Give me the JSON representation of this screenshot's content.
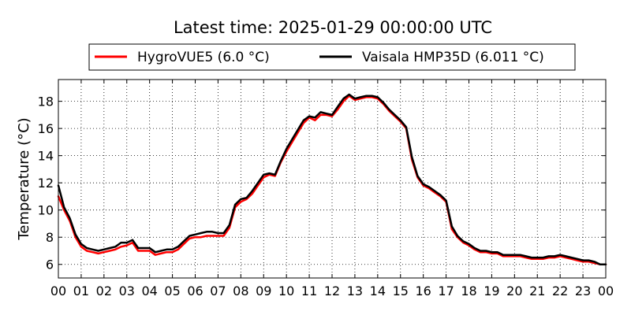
{
  "chart_data": {
    "type": "line",
    "title": "Latest time: 2025-01-29 00:00:00 UTC",
    "ylabel": "Temperature (°C)",
    "xlabel": "",
    "xlim": [
      0,
      24
    ],
    "ylim": [
      5,
      19.6
    ],
    "x_tick_values": [
      0,
      1,
      2,
      3,
      4,
      5,
      6,
      7,
      8,
      9,
      10,
      11,
      12,
      13,
      14,
      15,
      16,
      17,
      18,
      19,
      20,
      21,
      22,
      23,
      24
    ],
    "x_tick_labels": [
      "00",
      "01",
      "02",
      "03",
      "04",
      "05",
      "06",
      "07",
      "08",
      "09",
      "10",
      "11",
      "12",
      "13",
      "14",
      "15",
      "16",
      "17",
      "18",
      "19",
      "20",
      "21",
      "22",
      "23",
      "00"
    ],
    "y_ticks": [
      6,
      8,
      10,
      12,
      14,
      16,
      18
    ],
    "grid": true,
    "legend_position": "top",
    "series": [
      {
        "name": "HygroVUE5 (6.0 °C)",
        "color": "#ff0000",
        "x": [
          0,
          0.25,
          0.5,
          0.75,
          1,
          1.25,
          1.5,
          1.75,
          2,
          2.25,
          2.5,
          2.75,
          3,
          3.25,
          3.5,
          3.75,
          4,
          4.25,
          4.5,
          4.75,
          5,
          5.25,
          5.5,
          5.75,
          6,
          6.25,
          6.5,
          6.75,
          7,
          7.25,
          7.5,
          7.75,
          8,
          8.25,
          8.5,
          8.75,
          9,
          9.25,
          9.5,
          9.75,
          10,
          10.25,
          10.5,
          10.75,
          11,
          11.25,
          11.5,
          11.75,
          12,
          12.25,
          12.5,
          12.75,
          13,
          13.25,
          13.5,
          13.75,
          14,
          14.25,
          14.5,
          14.75,
          15,
          15.25,
          15.5,
          15.75,
          16,
          16.25,
          16.5,
          16.75,
          17,
          17.25,
          17.5,
          17.75,
          18,
          18.25,
          18.5,
          18.75,
          19,
          19.25,
          19.5,
          19.75,
          20,
          20.25,
          20.5,
          20.75,
          21,
          21.25,
          21.5,
          21.75,
          22,
          22.25,
          22.5,
          22.75,
          23,
          23.25,
          23.5,
          23.75,
          24
        ],
        "y": [
          11.0,
          10.0,
          9.2,
          8.0,
          7.3,
          7.0,
          6.9,
          6.8,
          6.9,
          7.0,
          7.1,
          7.3,
          7.4,
          7.6,
          7.0,
          7.0,
          7.0,
          6.7,
          6.8,
          6.9,
          6.9,
          7.1,
          7.5,
          7.9,
          8.0,
          8.0,
          8.1,
          8.1,
          8.1,
          8.1,
          8.7,
          10.2,
          10.6,
          10.8,
          11.2,
          11.8,
          12.4,
          12.6,
          12.5,
          13.5,
          14.3,
          15.0,
          15.7,
          16.4,
          16.8,
          16.6,
          17.0,
          17.0,
          16.9,
          17.4,
          18.0,
          18.4,
          18.1,
          18.2,
          18.3,
          18.3,
          18.2,
          17.8,
          17.3,
          16.9,
          16.5,
          16.0,
          13.7,
          12.4,
          11.8,
          11.6,
          11.3,
          11.0,
          10.6,
          8.6,
          8.0,
          7.6,
          7.4,
          7.1,
          6.9,
          6.9,
          6.8,
          6.8,
          6.6,
          6.6,
          6.6,
          6.6,
          6.5,
          6.4,
          6.4,
          6.4,
          6.5,
          6.5,
          6.6,
          6.5,
          6.4,
          6.3,
          6.2,
          6.2,
          6.1,
          6.0,
          6.0
        ]
      },
      {
        "name": "Vaisala HMP35D (6.011 °C)",
        "color": "#000000",
        "x": [
          0,
          0.25,
          0.5,
          0.75,
          1,
          1.25,
          1.5,
          1.75,
          2,
          2.25,
          2.5,
          2.75,
          3,
          3.25,
          3.5,
          3.75,
          4,
          4.25,
          4.5,
          4.75,
          5,
          5.25,
          5.5,
          5.75,
          6,
          6.25,
          6.5,
          6.75,
          7,
          7.25,
          7.5,
          7.75,
          8,
          8.25,
          8.5,
          8.75,
          9,
          9.25,
          9.5,
          9.75,
          10,
          10.25,
          10.5,
          10.75,
          11,
          11.25,
          11.5,
          11.75,
          12,
          12.25,
          12.5,
          12.75,
          13,
          13.25,
          13.5,
          13.75,
          14,
          14.25,
          14.5,
          14.75,
          15,
          15.25,
          15.5,
          15.75,
          16,
          16.25,
          16.5,
          16.75,
          17,
          17.25,
          17.5,
          17.75,
          18,
          18.25,
          18.5,
          18.75,
          19,
          19.25,
          19.5,
          19.75,
          20,
          20.25,
          20.5,
          20.75,
          21,
          21.25,
          21.5,
          21.75,
          22,
          22.25,
          22.5,
          22.75,
          23,
          23.25,
          23.5,
          23.75,
          24
        ],
        "y": [
          11.8,
          10.2,
          9.4,
          8.2,
          7.5,
          7.2,
          7.1,
          7.0,
          7.1,
          7.2,
          7.3,
          7.6,
          7.6,
          7.8,
          7.2,
          7.2,
          7.2,
          6.9,
          7.0,
          7.1,
          7.1,
          7.3,
          7.7,
          8.1,
          8.2,
          8.3,
          8.4,
          8.4,
          8.3,
          8.3,
          8.9,
          10.4,
          10.8,
          10.9,
          11.4,
          12.0,
          12.6,
          12.7,
          12.6,
          13.6,
          14.5,
          15.2,
          15.9,
          16.6,
          16.9,
          16.8,
          17.2,
          17.1,
          17.0,
          17.6,
          18.2,
          18.5,
          18.2,
          18.3,
          18.4,
          18.4,
          18.3,
          17.9,
          17.4,
          17.0,
          16.6,
          16.1,
          13.9,
          12.5,
          11.9,
          11.7,
          11.4,
          11.1,
          10.7,
          8.8,
          8.1,
          7.7,
          7.5,
          7.2,
          7.0,
          7.0,
          6.9,
          6.9,
          6.7,
          6.7,
          6.7,
          6.7,
          6.6,
          6.5,
          6.5,
          6.5,
          6.6,
          6.6,
          6.7,
          6.6,
          6.5,
          6.4,
          6.3,
          6.3,
          6.2,
          6.0,
          6.0
        ]
      }
    ]
  }
}
